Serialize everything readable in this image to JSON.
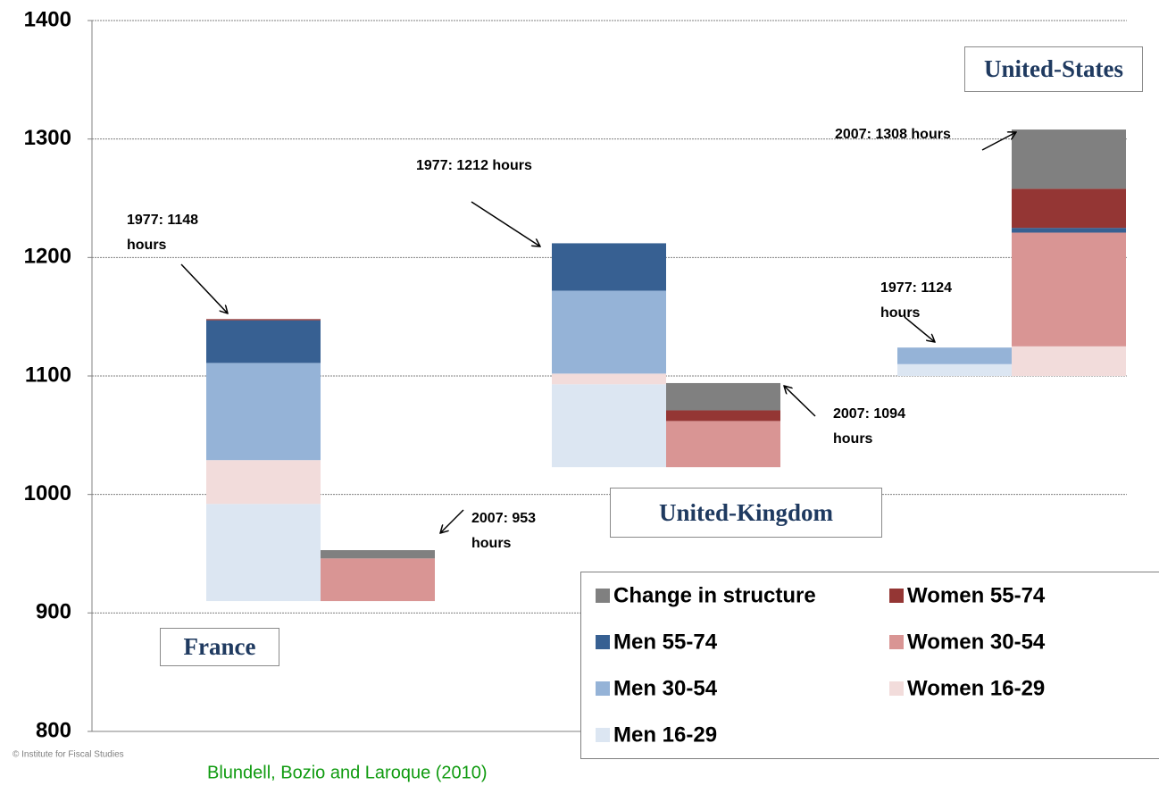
{
  "chart_data": {
    "type": "bar",
    "categories": [
      null,
      null,
      null,
      null,
      null,
      null
    ],
    "base": [
      910,
      910,
      1023,
      1023,
      1100,
      1100
    ],
    "series": [
      {
        "name": "Men 16-29",
        "color": "#dce6f2",
        "values": [
          82,
          null,
          70,
          null,
          10,
          null
        ]
      },
      {
        "name": "Women 16-29",
        "color": "#f2dcdb",
        "values": [
          37,
          null,
          9,
          null,
          null,
          25
        ]
      },
      {
        "name": "Men 30-54",
        "color": "#95b3d7",
        "values": [
          82,
          null,
          70,
          null,
          14,
          null
        ]
      },
      {
        "name": "Women 30-54",
        "color": "#d99594",
        "values": [
          null,
          36,
          null,
          39,
          null,
          96
        ]
      },
      {
        "name": "Men 55-74",
        "color": "#376092",
        "values": [
          36,
          null,
          40,
          null,
          null,
          4
        ]
      },
      {
        "name": "Women 55-74",
        "color": "#943634",
        "values": [
          1,
          null,
          null,
          9,
          null,
          33
        ]
      },
      {
        "name": "Change in structure",
        "color": "#808080",
        "values": [
          null,
          7,
          null,
          23,
          null,
          50
        ]
      }
    ],
    "ylim": [
      800,
      1400
    ],
    "yticks": [
      800,
      900,
      1000,
      1100,
      1200,
      1300,
      1400
    ],
    "grid": true,
    "annotations": [
      "1977: 1148 hours",
      "2007: 953 hours",
      "1977: 1212 hours",
      "2007: 1094 hours",
      "1977: 1124 hours",
      "2007: 1308 hours"
    ],
    "group_labels": [
      "France",
      "United-Kingdom",
      "United-States"
    ],
    "copyright": "© Institute for Fiscal Studies",
    "source": "Blundell, Bozio and Laroque (2010)"
  }
}
